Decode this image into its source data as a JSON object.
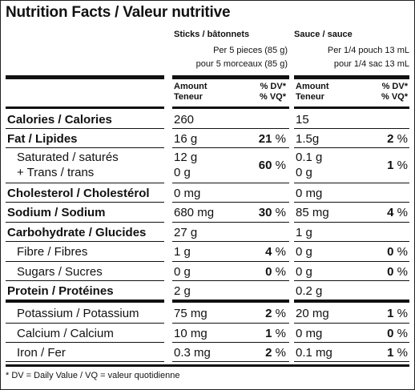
{
  "title": "Nutrition Facts / Valeur nutritive",
  "columns": [
    {
      "name": "Sticks / bâtonnets",
      "serving_en": "Per 5 pieces (85 g)",
      "serving_fr": "pour 5 morceaux (85 g)"
    },
    {
      "name": "Sauce / sauce",
      "serving_en": "Per 1/4 pouch 13 mL",
      "serving_fr": "pour 1/4 sac 13 mL"
    }
  ],
  "headers": {
    "amount": "Amount",
    "teneur": "Teneur",
    "dv": "% DV*",
    "vq": "% VQ*"
  },
  "rows": [
    {
      "label": "Calories / Calories",
      "bold": true,
      "c1": "260",
      "p1": "",
      "c2": "15",
      "p2": ""
    },
    {
      "label": "Fat / Lipides",
      "bold": true,
      "c1": "16 g",
      "p1": "21",
      "c2": "1.5g",
      "p2": "2"
    },
    {
      "label": "Saturated / saturés",
      "label2": "+ Trans / trans",
      "bold": false,
      "c1": "12 g",
      "c1b": "0 g",
      "p1": "60",
      "c2": "0.1 g",
      "c2b": "0 g",
      "p2": "1"
    },
    {
      "label": "Cholesterol / Cholestérol",
      "bold": true,
      "c1": "0 mg",
      "p1": "",
      "c2": "0 mg",
      "p2": ""
    },
    {
      "label": "Sodium / Sodium",
      "bold": true,
      "c1": "680 mg",
      "p1": "30",
      "c2": "85 mg",
      "p2": "4"
    },
    {
      "label": "Carbohydrate / Glucides",
      "bold": true,
      "c1": "27 g",
      "p1": "",
      "c2": "1 g",
      "p2": ""
    },
    {
      "label": "Fibre / Fibres",
      "bold": false,
      "c1": "1 g",
      "p1": "4",
      "c2": "0 g",
      "p2": "0"
    },
    {
      "label": "Sugars / Sucres",
      "bold": false,
      "c1": "0 g",
      "p1": "0",
      "c2": "0 g",
      "p2": "0"
    },
    {
      "label": "Protein / Protéines",
      "bold": true,
      "c1": "2 g",
      "p1": "",
      "c2": "0.2 g",
      "p2": ""
    },
    {
      "label": "Potassium / Potassium",
      "bold": false,
      "c1": "75 mg",
      "p1": "2",
      "c2": "20 mg",
      "p2": "1"
    },
    {
      "label": "Calcium / Calcium",
      "bold": false,
      "c1": "10 mg",
      "p1": "1",
      "c2": "0 mg",
      "p2": "0"
    },
    {
      "label": "Iron / Fer",
      "bold": false,
      "c1": "0.3 mg",
      "p1": "2",
      "c2": "0.1 mg",
      "p2": "1"
    }
  ],
  "percent_sign": "%",
  "footnote": "* DV = Daily Value / VQ = valeur quotidienne"
}
